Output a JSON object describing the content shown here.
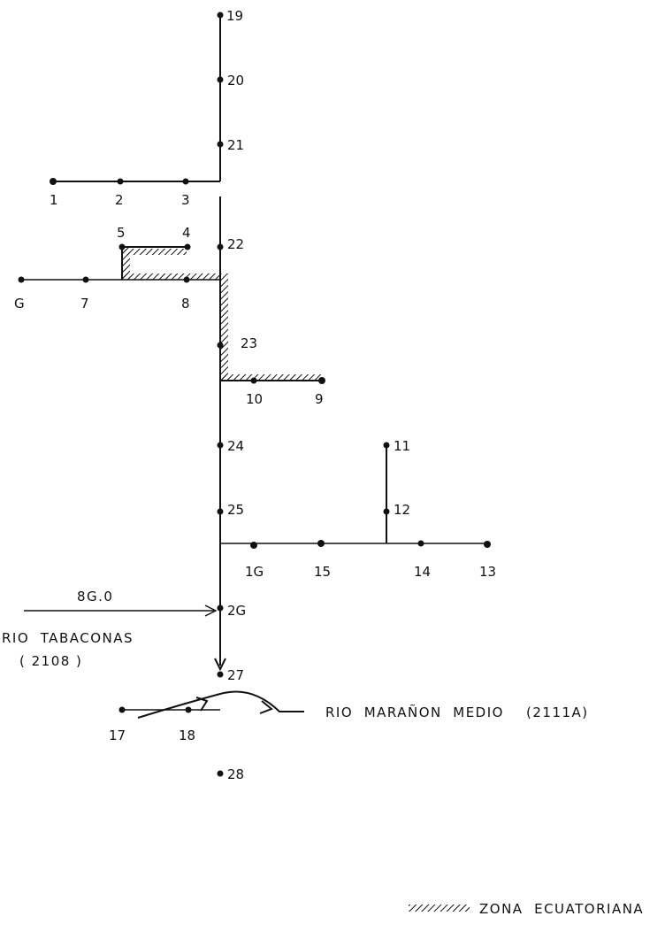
{
  "nodes": {
    "n1": "1",
    "n2": "2",
    "n3": "3",
    "n4": "4",
    "n5": "5",
    "n6": "G",
    "n7": "7",
    "n8": "8",
    "n9": "9",
    "n10": "10",
    "n11": "11",
    "n12": "12",
    "n13": "13",
    "n14": "14",
    "n15": "15",
    "n16": "1G",
    "n17": "17",
    "n18": "18",
    "n19": "19",
    "n20": "20",
    "n21": "21",
    "n22": "22",
    "n23": "23",
    "n24": "24",
    "n25": "25",
    "n26": "2G",
    "n27": "27",
    "n28": "28"
  },
  "inflow": {
    "value": "8G.0",
    "river": "RIO  TABACONAS",
    "code": "( 2108 )"
  },
  "outflow": {
    "label": "RIO  MARAÑON  MEDIO    (2111A)"
  },
  "legend": {
    "label": "ZONA  ECUATORIANA"
  }
}
